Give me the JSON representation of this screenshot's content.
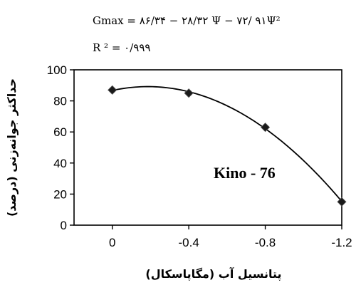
{
  "chart_data": {
    "type": "scatter",
    "equation": "Gmax = ۸۶/۳۴ − ۲۸/۳۲ Ψ − ۷۲/ ۹۱Ψ²",
    "r_squared": "R ² = ۰/۹۹۹",
    "xlabel": "پتانسیل آب (مگاپاسکال)",
    "ylabel": "حداکثر جوانه‌زنی (درصد)",
    "x_ticks": [
      "0",
      "-0.4",
      "-0.8",
      "-1.2"
    ],
    "y_ticks": [
      "0",
      "20",
      "40",
      "60",
      "80",
      "100"
    ],
    "xlim": [
      0.2,
      -1.2
    ],
    "ylim": [
      0,
      100
    ],
    "series": [
      {
        "name": "Kino - 76",
        "x": [
          0,
          -0.4,
          -0.8,
          -1.2
        ],
        "y": [
          87,
          85,
          63,
          15
        ],
        "trendline": "polynomial-2",
        "marker": "diamond"
      }
    ],
    "grid": false,
    "legend": "none"
  }
}
